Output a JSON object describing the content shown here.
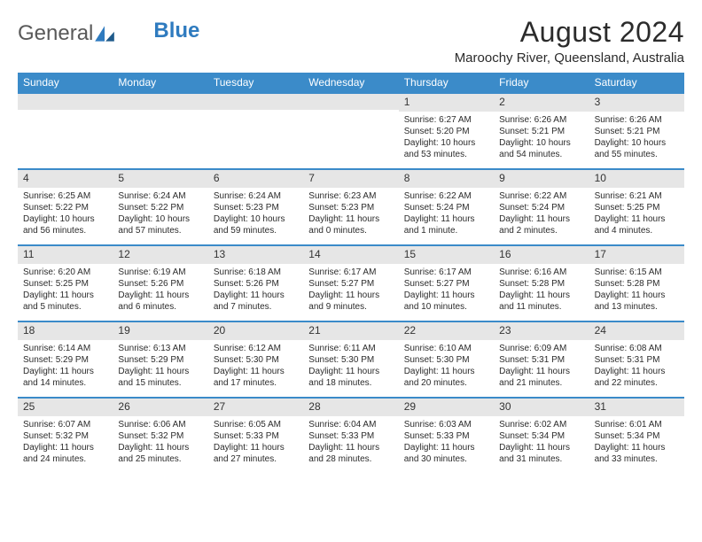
{
  "logo": {
    "textA": "General",
    "textB": "Blue"
  },
  "title": "August 2024",
  "location": "Maroochy River, Queensland, Australia",
  "colors": {
    "header_bg": "#3b8bc9",
    "num_bg": "#e6e6e6",
    "border": "#3b8bc9"
  },
  "day_headers": [
    "Sunday",
    "Monday",
    "Tuesday",
    "Wednesday",
    "Thursday",
    "Friday",
    "Saturday"
  ],
  "weeks": [
    [
      null,
      null,
      null,
      null,
      {
        "n": "1",
        "sr": "6:27 AM",
        "ss": "5:20 PM",
        "dl": "10 hours and 53 minutes."
      },
      {
        "n": "2",
        "sr": "6:26 AM",
        "ss": "5:21 PM",
        "dl": "10 hours and 54 minutes."
      },
      {
        "n": "3",
        "sr": "6:26 AM",
        "ss": "5:21 PM",
        "dl": "10 hours and 55 minutes."
      }
    ],
    [
      {
        "n": "4",
        "sr": "6:25 AM",
        "ss": "5:22 PM",
        "dl": "10 hours and 56 minutes."
      },
      {
        "n": "5",
        "sr": "6:24 AM",
        "ss": "5:22 PM",
        "dl": "10 hours and 57 minutes."
      },
      {
        "n": "6",
        "sr": "6:24 AM",
        "ss": "5:23 PM",
        "dl": "10 hours and 59 minutes."
      },
      {
        "n": "7",
        "sr": "6:23 AM",
        "ss": "5:23 PM",
        "dl": "11 hours and 0 minutes."
      },
      {
        "n": "8",
        "sr": "6:22 AM",
        "ss": "5:24 PM",
        "dl": "11 hours and 1 minute."
      },
      {
        "n": "9",
        "sr": "6:22 AM",
        "ss": "5:24 PM",
        "dl": "11 hours and 2 minutes."
      },
      {
        "n": "10",
        "sr": "6:21 AM",
        "ss": "5:25 PM",
        "dl": "11 hours and 4 minutes."
      }
    ],
    [
      {
        "n": "11",
        "sr": "6:20 AM",
        "ss": "5:25 PM",
        "dl": "11 hours and 5 minutes."
      },
      {
        "n": "12",
        "sr": "6:19 AM",
        "ss": "5:26 PM",
        "dl": "11 hours and 6 minutes."
      },
      {
        "n": "13",
        "sr": "6:18 AM",
        "ss": "5:26 PM",
        "dl": "11 hours and 7 minutes."
      },
      {
        "n": "14",
        "sr": "6:17 AM",
        "ss": "5:27 PM",
        "dl": "11 hours and 9 minutes."
      },
      {
        "n": "15",
        "sr": "6:17 AM",
        "ss": "5:27 PM",
        "dl": "11 hours and 10 minutes."
      },
      {
        "n": "16",
        "sr": "6:16 AM",
        "ss": "5:28 PM",
        "dl": "11 hours and 11 minutes."
      },
      {
        "n": "17",
        "sr": "6:15 AM",
        "ss": "5:28 PM",
        "dl": "11 hours and 13 minutes."
      }
    ],
    [
      {
        "n": "18",
        "sr": "6:14 AM",
        "ss": "5:29 PM",
        "dl": "11 hours and 14 minutes."
      },
      {
        "n": "19",
        "sr": "6:13 AM",
        "ss": "5:29 PM",
        "dl": "11 hours and 15 minutes."
      },
      {
        "n": "20",
        "sr": "6:12 AM",
        "ss": "5:30 PM",
        "dl": "11 hours and 17 minutes."
      },
      {
        "n": "21",
        "sr": "6:11 AM",
        "ss": "5:30 PM",
        "dl": "11 hours and 18 minutes."
      },
      {
        "n": "22",
        "sr": "6:10 AM",
        "ss": "5:30 PM",
        "dl": "11 hours and 20 minutes."
      },
      {
        "n": "23",
        "sr": "6:09 AM",
        "ss": "5:31 PM",
        "dl": "11 hours and 21 minutes."
      },
      {
        "n": "24",
        "sr": "6:08 AM",
        "ss": "5:31 PM",
        "dl": "11 hours and 22 minutes."
      }
    ],
    [
      {
        "n": "25",
        "sr": "6:07 AM",
        "ss": "5:32 PM",
        "dl": "11 hours and 24 minutes."
      },
      {
        "n": "26",
        "sr": "6:06 AM",
        "ss": "5:32 PM",
        "dl": "11 hours and 25 minutes."
      },
      {
        "n": "27",
        "sr": "6:05 AM",
        "ss": "5:33 PM",
        "dl": "11 hours and 27 minutes."
      },
      {
        "n": "28",
        "sr": "6:04 AM",
        "ss": "5:33 PM",
        "dl": "11 hours and 28 minutes."
      },
      {
        "n": "29",
        "sr": "6:03 AM",
        "ss": "5:33 PM",
        "dl": "11 hours and 30 minutes."
      },
      {
        "n": "30",
        "sr": "6:02 AM",
        "ss": "5:34 PM",
        "dl": "11 hours and 31 minutes."
      },
      {
        "n": "31",
        "sr": "6:01 AM",
        "ss": "5:34 PM",
        "dl": "11 hours and 33 minutes."
      }
    ]
  ],
  "labels": {
    "sunrise": "Sunrise:",
    "sunset": "Sunset:",
    "daylight": "Daylight:"
  }
}
